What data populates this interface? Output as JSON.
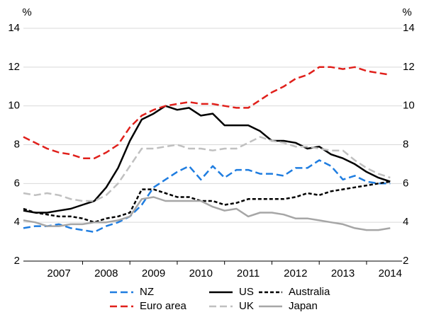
{
  "chart_data": {
    "type": "line",
    "y_unit": "%",
    "y2_unit": "%",
    "x": [
      2006.75,
      2007.0,
      2007.25,
      2007.5,
      2007.75,
      2008.0,
      2008.25,
      2008.5,
      2008.75,
      2009.0,
      2009.25,
      2009.5,
      2009.75,
      2010.0,
      2010.25,
      2010.5,
      2010.75,
      2011.0,
      2011.25,
      2011.5,
      2011.75,
      2012.0,
      2012.25,
      2012.5,
      2012.75,
      2013.0,
      2013.25,
      2013.5,
      2013.75,
      2014.0,
      2014.25,
      2014.5
    ],
    "xlim": [
      2006.75,
      2014.75
    ],
    "xticks": [
      {
        "value": 2007.5,
        "label": "2007"
      },
      {
        "value": 2008.5,
        "label": "2008"
      },
      {
        "value": 2009.5,
        "label": "2009"
      },
      {
        "value": 2010.5,
        "label": "2010"
      },
      {
        "value": 2011.5,
        "label": "2011"
      },
      {
        "value": 2012.5,
        "label": "2012"
      },
      {
        "value": 2013.5,
        "label": "2013"
      },
      {
        "value": 2014.5,
        "label": "2014"
      }
    ],
    "minor_xticks": [
      2008,
      2009,
      2010,
      2011,
      2012,
      2013,
      2014
    ],
    "ylim": [
      2,
      14
    ],
    "yticks": [
      2,
      4,
      6,
      8,
      10,
      12,
      14
    ],
    "y2lim": [
      2,
      14
    ],
    "y2ticks": [
      2,
      4,
      6,
      8,
      10,
      12,
      14
    ],
    "grid": true,
    "legend": "bottom",
    "series": [
      {
        "name": "NZ",
        "color": "#1f7de0",
        "line_style": "dashed",
        "values": [
          3.7,
          3.8,
          3.8,
          3.9,
          3.7,
          3.6,
          3.5,
          3.8,
          4.0,
          4.3,
          4.9,
          5.8,
          6.2,
          6.6,
          6.9,
          6.2,
          6.9,
          6.3,
          6.7,
          6.7,
          6.5,
          6.5,
          6.4,
          6.8,
          6.8,
          7.2,
          6.9,
          6.2,
          6.4,
          6.1,
          6.0,
          6.0
        ]
      },
      {
        "name": "US",
        "color": "#000000",
        "line_style": "solid",
        "values": [
          4.6,
          4.5,
          4.5,
          4.6,
          4.7,
          4.9,
          5.1,
          5.8,
          6.8,
          8.2,
          9.3,
          9.6,
          10.0,
          9.8,
          9.9,
          9.5,
          9.6,
          9.0,
          9.0,
          9.0,
          8.7,
          8.2,
          8.2,
          8.1,
          7.8,
          7.9,
          7.5,
          7.3,
          7.0,
          6.6,
          6.3,
          6.1
        ]
      },
      {
        "name": "Australia",
        "color": "#000000",
        "line_style": "short-dashed",
        "values": [
          4.7,
          4.5,
          4.4,
          4.3,
          4.3,
          4.2,
          4.0,
          4.2,
          4.3,
          4.5,
          5.7,
          5.7,
          5.5,
          5.3,
          5.3,
          5.1,
          5.1,
          4.9,
          5.0,
          5.2,
          5.2,
          5.2,
          5.2,
          5.3,
          5.5,
          5.4,
          5.6,
          5.7,
          5.8,
          5.9,
          6.0,
          6.1
        ]
      },
      {
        "name": "Euro area",
        "color": "#e0201b",
        "line_style": "dashed",
        "values": [
          8.4,
          8.1,
          7.8,
          7.6,
          7.5,
          7.3,
          7.3,
          7.6,
          8.0,
          8.9,
          9.5,
          9.8,
          10.0,
          10.1,
          10.2,
          10.1,
          10.1,
          10.0,
          9.9,
          9.9,
          10.3,
          10.7,
          11.0,
          11.4,
          11.6,
          12.0,
          12.0,
          11.9,
          12.0,
          11.8,
          11.7,
          11.6
        ]
      },
      {
        "name": "UK",
        "color": "#c0c0c0",
        "line_style": "dashed",
        "values": [
          5.5,
          5.4,
          5.5,
          5.4,
          5.2,
          5.1,
          5.1,
          5.4,
          6.0,
          6.9,
          7.8,
          7.8,
          7.9,
          8.0,
          7.8,
          7.8,
          7.7,
          7.8,
          7.8,
          8.1,
          8.4,
          8.2,
          8.1,
          7.9,
          7.9,
          7.8,
          7.7,
          7.7,
          7.2,
          6.8,
          6.5,
          6.3
        ]
      },
      {
        "name": "Japan",
        "color": "#a6a6a6",
        "line_style": "solid",
        "values": [
          4.1,
          4.0,
          3.8,
          3.8,
          3.9,
          3.9,
          4.0,
          4.0,
          4.1,
          4.3,
          5.2,
          5.3,
          5.1,
          5.1,
          5.1,
          5.1,
          4.8,
          4.6,
          4.7,
          4.3,
          4.5,
          4.5,
          4.4,
          4.2,
          4.2,
          4.1,
          4.0,
          3.9,
          3.7,
          3.6,
          3.6,
          3.7
        ]
      }
    ]
  }
}
